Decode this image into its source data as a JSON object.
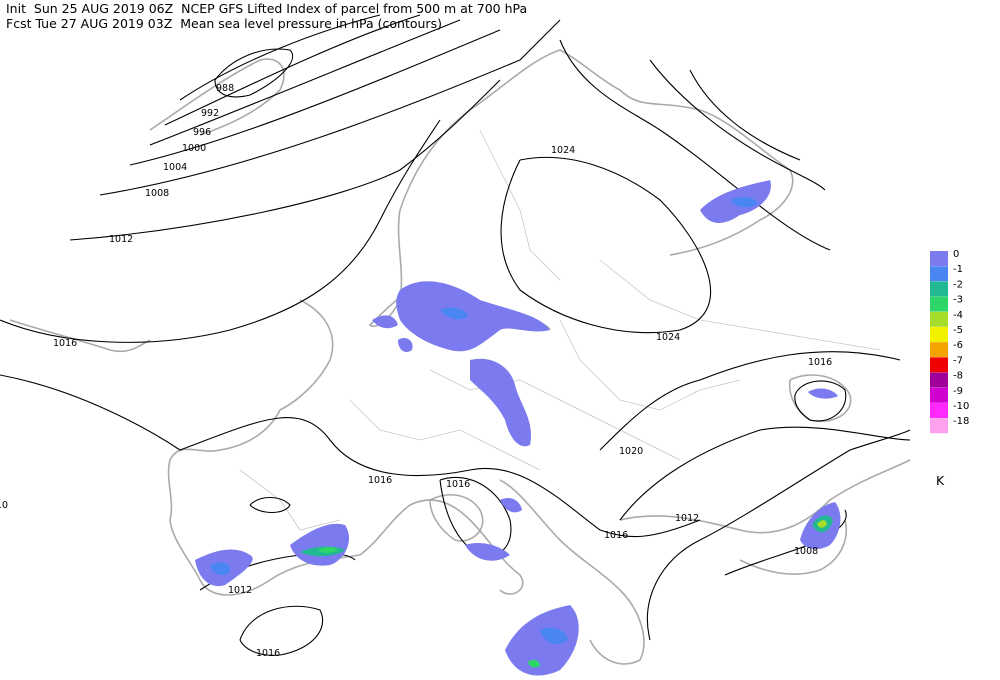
{
  "header": {
    "line1": "Init  Sun 25 AUG 2019 06Z  NCEP GFS Lifted Index of parcel from 500 m at 700 hPa",
    "line2": "Fcst Tue 27 AUG 2019 03Z  Mean sea level pressure in hPa (contours)"
  },
  "contour_labels": [
    "988",
    "992",
    "996",
    "1000",
    "1004",
    "1008",
    "1012",
    "1016",
    "10",
    "1024",
    "1024",
    "1016",
    "1020",
    "1016",
    "1016",
    "1012",
    "1016",
    "1008",
    "1012",
    "1016"
  ],
  "legend": {
    "items": [
      {
        "label": "0",
        "color": "#7b7bef"
      },
      {
        "label": "-1",
        "color": "#4a86f2"
      },
      {
        "label": "-2",
        "color": "#22b893"
      },
      {
        "label": "-3",
        "color": "#2ed66a"
      },
      {
        "label": "-4",
        "color": "#a6dc2a"
      },
      {
        "label": "-5",
        "color": "#f2f200"
      },
      {
        "label": "-6",
        "color": "#f5a300"
      },
      {
        "label": "-7",
        "color": "#f00000"
      },
      {
        "label": "-8",
        "color": "#a0009a"
      },
      {
        "label": "-9",
        "color": "#d000d0"
      },
      {
        "label": "-10",
        "color": "#ff28ff"
      },
      {
        "label": "-18",
        "color": "#ffa0ee"
      }
    ],
    "unit": "K"
  }
}
